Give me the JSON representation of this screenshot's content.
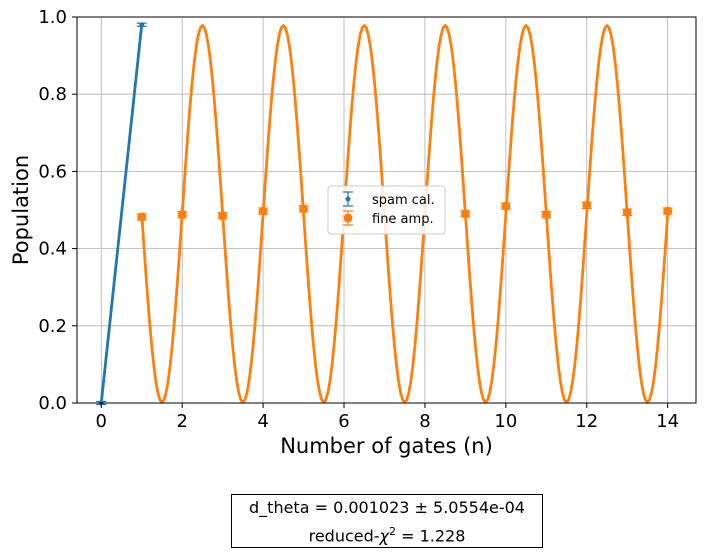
{
  "chart_data": {
    "type": "scatter",
    "xlabel": "Number of gates (n)",
    "ylabel": "Population",
    "xlim": [
      -0.6,
      14.7
    ],
    "ylim": [
      0.0,
      1.0
    ],
    "xticks": [
      0,
      2,
      4,
      6,
      8,
      10,
      12,
      14
    ],
    "yticks": [
      0.0,
      0.2,
      0.4,
      0.6,
      0.8,
      1.0
    ],
    "grid": true,
    "legend_placement": "center",
    "series": [
      {
        "name": "spam cal.",
        "color": "#1f77b4",
        "marker": "dot-with-errorbar",
        "x": [
          0,
          1
        ],
        "y": [
          0.0,
          0.98
        ],
        "err": [
          0.004,
          0.004
        ]
      },
      {
        "name": "fine amp.",
        "color": "#ff7f0e",
        "marker": "circle-with-errorbar",
        "x": [
          1,
          2,
          3,
          4,
          5,
          9,
          10,
          11,
          12,
          13,
          14
        ],
        "y": [
          0.482,
          0.488,
          0.485,
          0.497,
          0.503,
          0.49,
          0.51,
          0.488,
          0.512,
          0.494,
          0.497
        ],
        "err": [
          0.008,
          0.008,
          0.008,
          0.008,
          0.008,
          0.008,
          0.008,
          0.008,
          0.008,
          0.008,
          0.008
        ]
      }
    ],
    "fit_curves": [
      {
        "series": "spam cal.",
        "color": "#1f77b4",
        "x": [
          0,
          1
        ],
        "y": [
          0.0,
          0.98
        ]
      },
      {
        "series": "fine amp.",
        "color": "#ff7f0e",
        "form": "oscillation",
        "x_start": 1,
        "x_end": 14,
        "mean": 0.49,
        "amplitude": 0.488,
        "period": 2.0,
        "peak_x": 0.5
      }
    ],
    "fit_report": {
      "line1": "d_theta =   0.001023 ±  5.0554e-04",
      "line2_prefix": "reduced-",
      "line2_chi": "χ",
      "line2_sup": "2",
      "line2_suffix": " =  1.228"
    }
  }
}
